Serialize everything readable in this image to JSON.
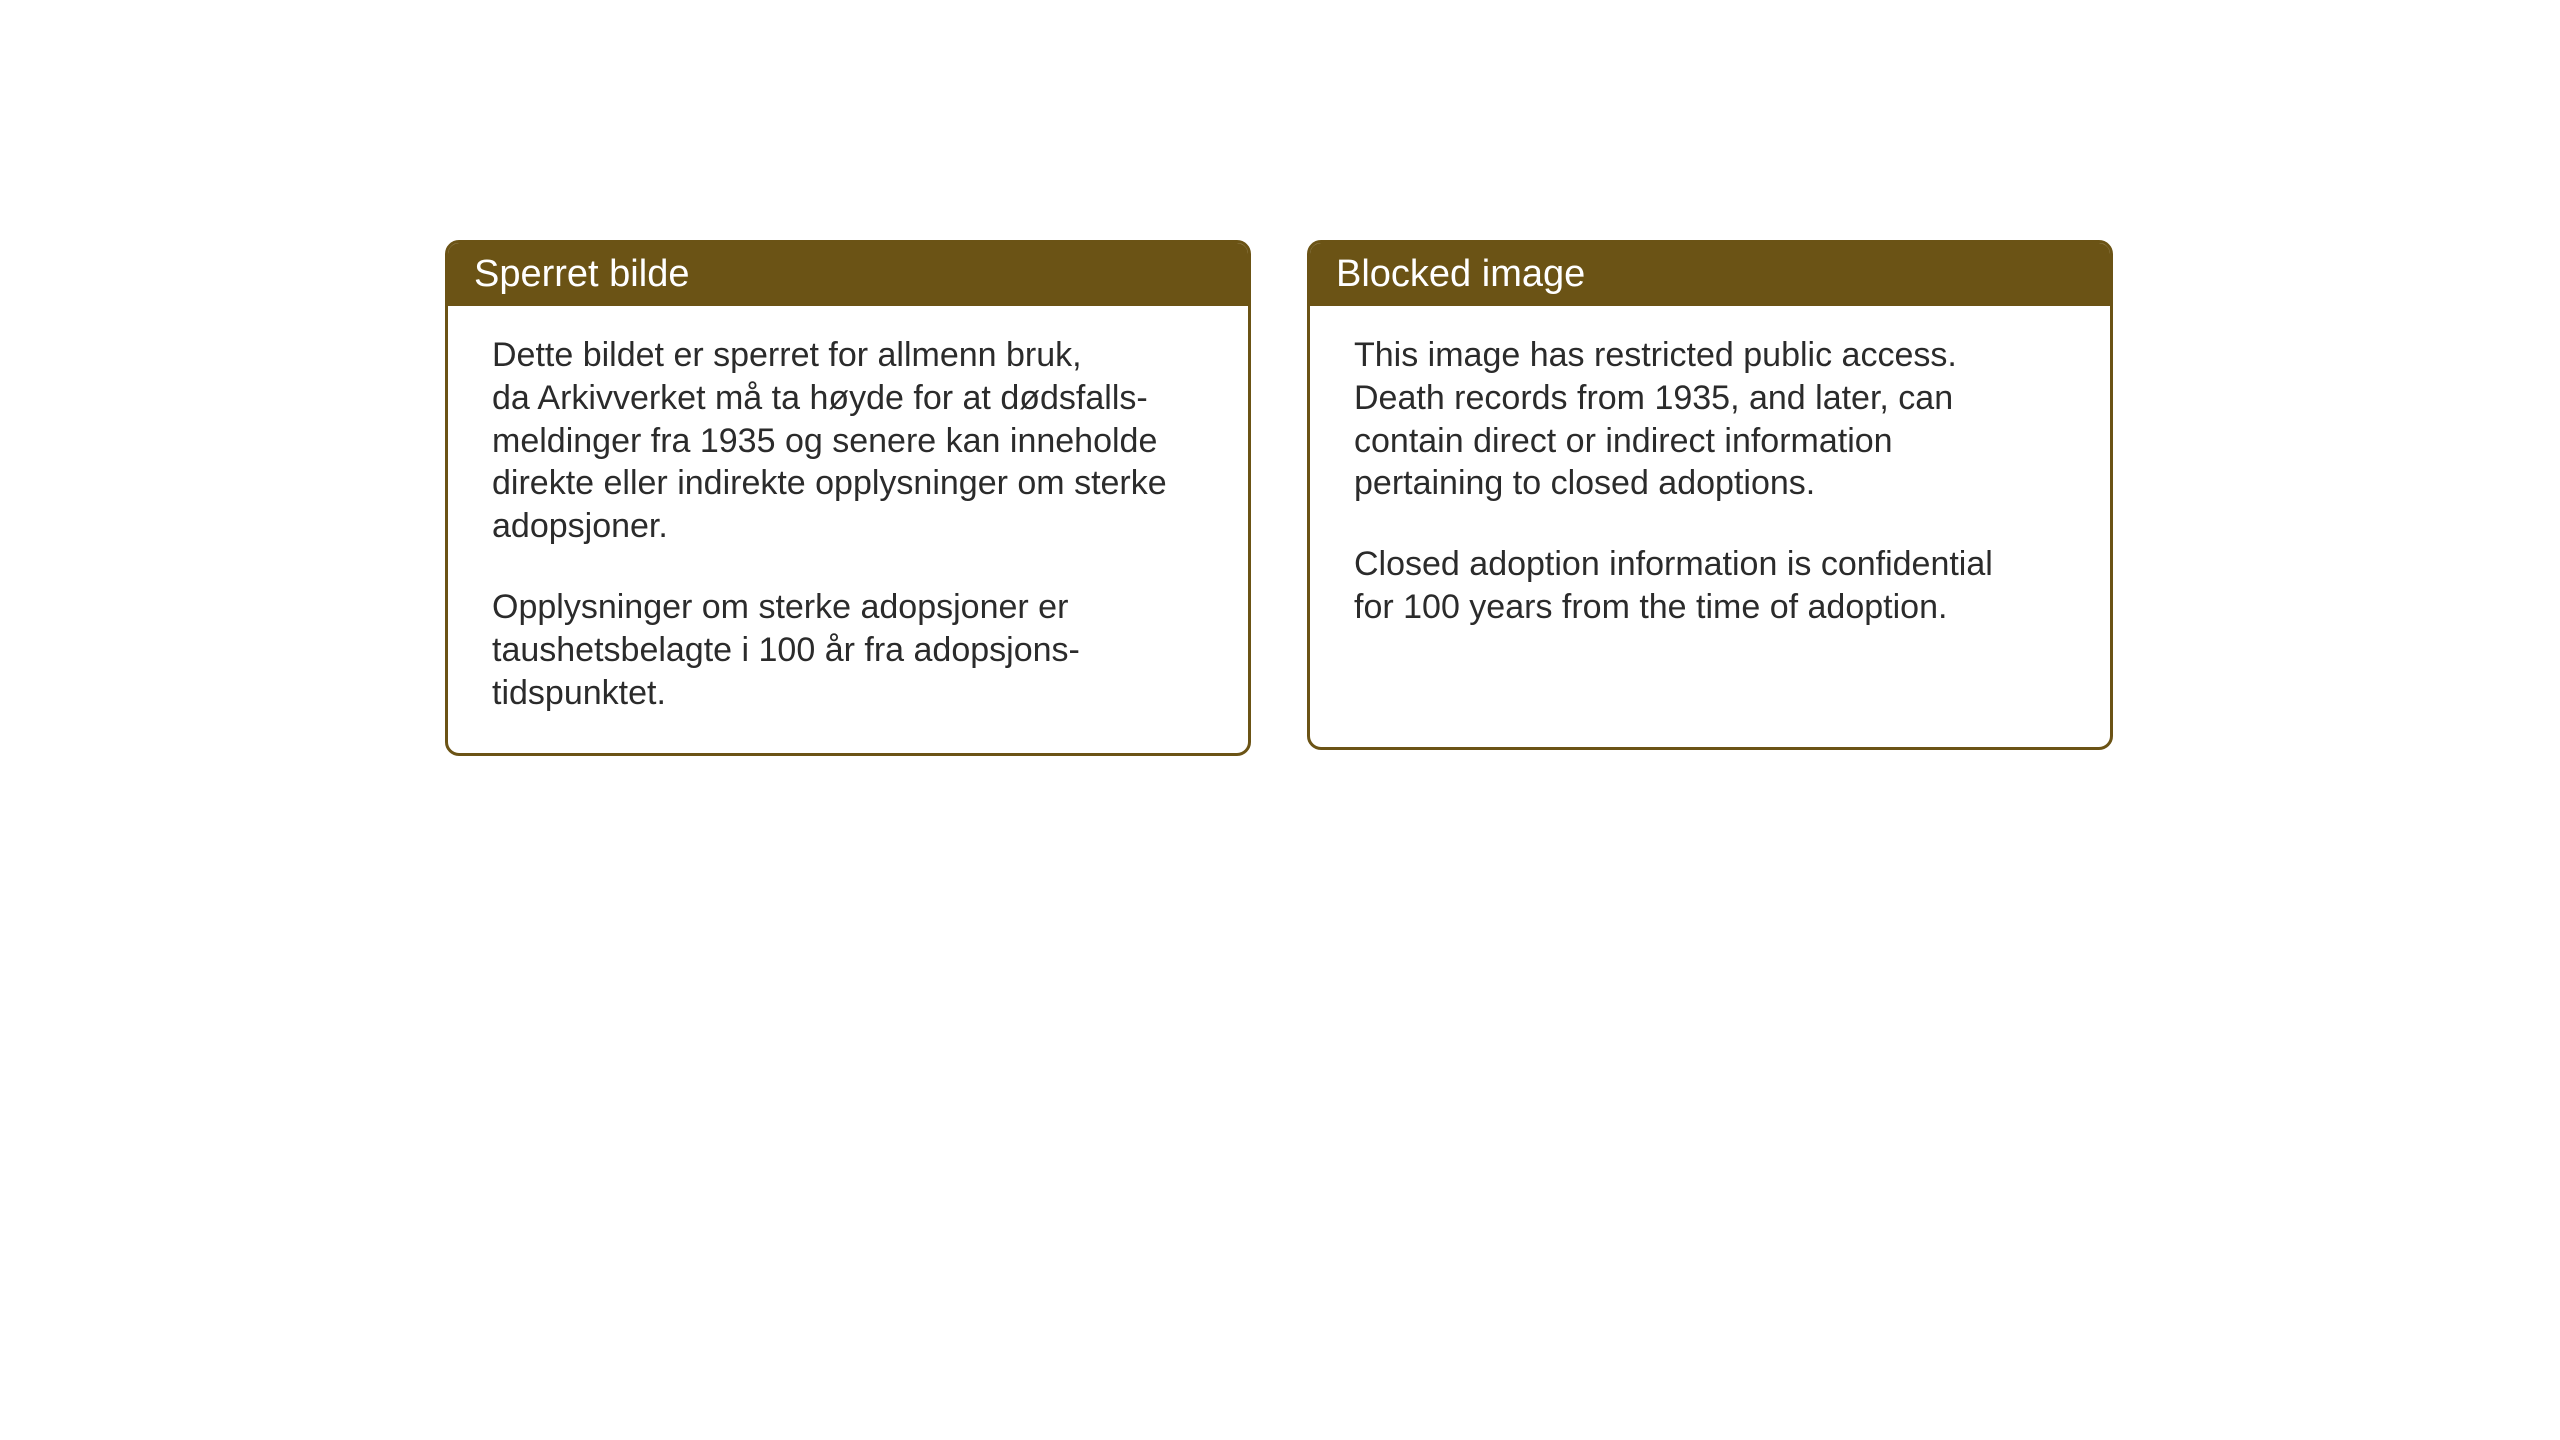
{
  "layout": {
    "background_color": "#ffffff",
    "card_border_color": "#6b5315",
    "card_border_width": 3,
    "card_border_radius": 14,
    "header_bg_color": "#6b5315",
    "header_text_color": "#ffffff",
    "body_text_color": "#2b2b2b",
    "header_fontsize": 38,
    "body_fontsize": 34
  },
  "left_card": {
    "title": "Sperret bilde",
    "para1_line1": "Dette bildet er sperret for allmenn bruk,",
    "para1_line2": "da Arkivverket må ta høyde for at dødsfalls-",
    "para1_line3": "meldinger fra 1935 og senere kan inneholde",
    "para1_line4": "direkte eller indirekte opplysninger om sterke",
    "para1_line5": "adopsjoner.",
    "para2_line1": "Opplysninger om sterke adopsjoner er",
    "para2_line2": "taushetsbelagte i 100 år fra adopsjons-",
    "para2_line3": "tidspunktet."
  },
  "right_card": {
    "title": "Blocked image",
    "para1_line1": "This image has restricted public access.",
    "para1_line2": "Death records from 1935, and later, can",
    "para1_line3": "contain direct or indirect information",
    "para1_line4": "pertaining to closed adoptions.",
    "para2_line1": "Closed adoption information is confidential",
    "para2_line2": "for 100 years from the time of adoption."
  }
}
